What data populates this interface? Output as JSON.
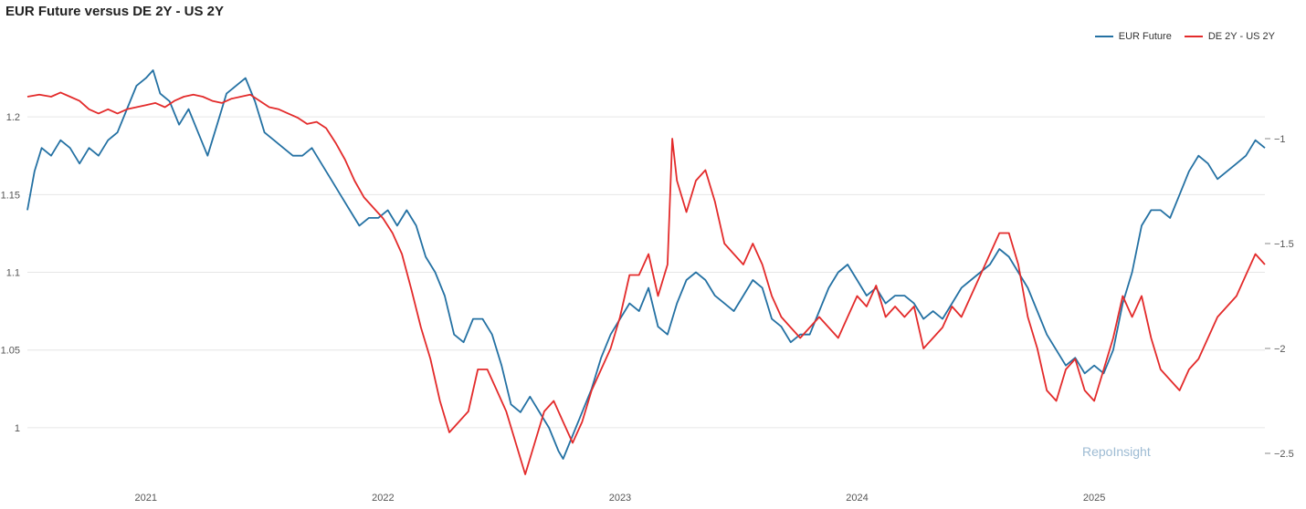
{
  "title": "EUR Future versus DE 2Y - US 2Y",
  "watermark": "RepoInsight",
  "colors": {
    "eur": "#2471a3",
    "spread": "#e32b2b",
    "grid": "#e6e6e6"
  },
  "chart_data": {
    "type": "line",
    "x_ticks": [
      "2021",
      "2022",
      "2023",
      "2024",
      "2025"
    ],
    "y_left_ticks": [
      "1",
      "1.05",
      "1.1",
      "1.15",
      "1.2"
    ],
    "y_right_ticks": [
      "−2.5",
      "−2",
      "−1.5",
      "−1"
    ],
    "y_left_range": [
      0.97,
      1.24
    ],
    "y_right_range": [
      -2.6,
      -0.6
    ],
    "x_range": [
      2020.5,
      2025.72
    ],
    "grid": "horizontal",
    "legend": "top-right",
    "series": [
      {
        "name": "EUR Future",
        "axis": "left",
        "color": "#2471a3",
        "points": [
          [
            2020.5,
            1.14
          ],
          [
            2020.53,
            1.165
          ],
          [
            2020.56,
            1.18
          ],
          [
            2020.6,
            1.175
          ],
          [
            2020.64,
            1.185
          ],
          [
            2020.68,
            1.18
          ],
          [
            2020.72,
            1.17
          ],
          [
            2020.76,
            1.18
          ],
          [
            2020.8,
            1.175
          ],
          [
            2020.84,
            1.185
          ],
          [
            2020.88,
            1.19
          ],
          [
            2020.92,
            1.205
          ],
          [
            2020.96,
            1.22
          ],
          [
            2021.0,
            1.225
          ],
          [
            2021.03,
            1.23
          ],
          [
            2021.06,
            1.215
          ],
          [
            2021.1,
            1.21
          ],
          [
            2021.14,
            1.195
          ],
          [
            2021.18,
            1.205
          ],
          [
            2021.22,
            1.19
          ],
          [
            2021.26,
            1.175
          ],
          [
            2021.3,
            1.195
          ],
          [
            2021.34,
            1.215
          ],
          [
            2021.38,
            1.22
          ],
          [
            2021.42,
            1.225
          ],
          [
            2021.46,
            1.21
          ],
          [
            2021.5,
            1.19
          ],
          [
            2021.54,
            1.185
          ],
          [
            2021.58,
            1.18
          ],
          [
            2021.62,
            1.175
          ],
          [
            2021.66,
            1.175
          ],
          [
            2021.7,
            1.18
          ],
          [
            2021.74,
            1.17
          ],
          [
            2021.78,
            1.16
          ],
          [
            2021.82,
            1.15
          ],
          [
            2021.86,
            1.14
          ],
          [
            2021.9,
            1.13
          ],
          [
            2021.94,
            1.135
          ],
          [
            2021.98,
            1.135
          ],
          [
            2022.02,
            1.14
          ],
          [
            2022.06,
            1.13
          ],
          [
            2022.1,
            1.14
          ],
          [
            2022.14,
            1.13
          ],
          [
            2022.18,
            1.11
          ],
          [
            2022.22,
            1.1
          ],
          [
            2022.26,
            1.085
          ],
          [
            2022.3,
            1.06
          ],
          [
            2022.34,
            1.055
          ],
          [
            2022.38,
            1.07
          ],
          [
            2022.42,
            1.07
          ],
          [
            2022.46,
            1.06
          ],
          [
            2022.5,
            1.04
          ],
          [
            2022.54,
            1.015
          ],
          [
            2022.58,
            1.01
          ],
          [
            2022.62,
            1.02
          ],
          [
            2022.66,
            1.01
          ],
          [
            2022.7,
            1.0
          ],
          [
            2022.74,
            0.985
          ],
          [
            2022.76,
            0.98
          ],
          [
            2022.8,
            0.995
          ],
          [
            2022.84,
            1.01
          ],
          [
            2022.88,
            1.025
          ],
          [
            2022.92,
            1.045
          ],
          [
            2022.96,
            1.06
          ],
          [
            2023.0,
            1.07
          ],
          [
            2023.04,
            1.08
          ],
          [
            2023.08,
            1.075
          ],
          [
            2023.12,
            1.09
          ],
          [
            2023.16,
            1.065
          ],
          [
            2023.2,
            1.06
          ],
          [
            2023.24,
            1.08
          ],
          [
            2023.28,
            1.095
          ],
          [
            2023.32,
            1.1
          ],
          [
            2023.36,
            1.095
          ],
          [
            2023.4,
            1.085
          ],
          [
            2023.44,
            1.08
          ],
          [
            2023.48,
            1.075
          ],
          [
            2023.52,
            1.085
          ],
          [
            2023.56,
            1.095
          ],
          [
            2023.6,
            1.09
          ],
          [
            2023.64,
            1.07
          ],
          [
            2023.68,
            1.065
          ],
          [
            2023.72,
            1.055
          ],
          [
            2023.76,
            1.06
          ],
          [
            2023.8,
            1.06
          ],
          [
            2023.84,
            1.075
          ],
          [
            2023.88,
            1.09
          ],
          [
            2023.92,
            1.1
          ],
          [
            2023.96,
            1.105
          ],
          [
            2024.0,
            1.095
          ],
          [
            2024.04,
            1.085
          ],
          [
            2024.08,
            1.09
          ],
          [
            2024.12,
            1.08
          ],
          [
            2024.16,
            1.085
          ],
          [
            2024.2,
            1.085
          ],
          [
            2024.24,
            1.08
          ],
          [
            2024.28,
            1.07
          ],
          [
            2024.32,
            1.075
          ],
          [
            2024.36,
            1.07
          ],
          [
            2024.4,
            1.08
          ],
          [
            2024.44,
            1.09
          ],
          [
            2024.48,
            1.095
          ],
          [
            2024.52,
            1.1
          ],
          [
            2024.56,
            1.105
          ],
          [
            2024.6,
            1.115
          ],
          [
            2024.64,
            1.11
          ],
          [
            2024.68,
            1.1
          ],
          [
            2024.72,
            1.09
          ],
          [
            2024.76,
            1.075
          ],
          [
            2024.8,
            1.06
          ],
          [
            2024.84,
            1.05
          ],
          [
            2024.88,
            1.04
          ],
          [
            2024.92,
            1.045
          ],
          [
            2024.96,
            1.035
          ],
          [
            2025.0,
            1.04
          ],
          [
            2025.04,
            1.035
          ],
          [
            2025.08,
            1.05
          ],
          [
            2025.12,
            1.08
          ],
          [
            2025.16,
            1.1
          ],
          [
            2025.2,
            1.13
          ],
          [
            2025.24,
            1.14
          ],
          [
            2025.28,
            1.14
          ],
          [
            2025.32,
            1.135
          ],
          [
            2025.36,
            1.15
          ],
          [
            2025.4,
            1.165
          ],
          [
            2025.44,
            1.175
          ],
          [
            2025.48,
            1.17
          ],
          [
            2025.52,
            1.16
          ],
          [
            2025.56,
            1.165
          ],
          [
            2025.6,
            1.17
          ],
          [
            2025.64,
            1.175
          ],
          [
            2025.68,
            1.185
          ],
          [
            2025.72,
            1.18
          ]
        ]
      },
      {
        "name": "DE 2Y - US 2Y",
        "axis": "right",
        "color": "#e32b2b",
        "points": [
          [
            2020.5,
            -0.8
          ],
          [
            2020.55,
            -0.79
          ],
          [
            2020.6,
            -0.8
          ],
          [
            2020.64,
            -0.78
          ],
          [
            2020.68,
            -0.8
          ],
          [
            2020.72,
            -0.82
          ],
          [
            2020.76,
            -0.86
          ],
          [
            2020.8,
            -0.88
          ],
          [
            2020.84,
            -0.86
          ],
          [
            2020.88,
            -0.88
          ],
          [
            2020.92,
            -0.86
          ],
          [
            2020.96,
            -0.85
          ],
          [
            2021.0,
            -0.84
          ],
          [
            2021.04,
            -0.83
          ],
          [
            2021.08,
            -0.85
          ],
          [
            2021.12,
            -0.82
          ],
          [
            2021.16,
            -0.8
          ],
          [
            2021.2,
            -0.79
          ],
          [
            2021.24,
            -0.8
          ],
          [
            2021.28,
            -0.82
          ],
          [
            2021.32,
            -0.83
          ],
          [
            2021.36,
            -0.81
          ],
          [
            2021.4,
            -0.8
          ],
          [
            2021.44,
            -0.79
          ],
          [
            2021.48,
            -0.82
          ],
          [
            2021.52,
            -0.85
          ],
          [
            2021.56,
            -0.86
          ],
          [
            2021.6,
            -0.88
          ],
          [
            2021.64,
            -0.9
          ],
          [
            2021.68,
            -0.93
          ],
          [
            2021.72,
            -0.92
          ],
          [
            2021.76,
            -0.95
          ],
          [
            2021.8,
            -1.02
          ],
          [
            2021.84,
            -1.1
          ],
          [
            2021.88,
            -1.2
          ],
          [
            2021.92,
            -1.28
          ],
          [
            2021.96,
            -1.33
          ],
          [
            2022.0,
            -1.38
          ],
          [
            2022.04,
            -1.45
          ],
          [
            2022.08,
            -1.55
          ],
          [
            2022.12,
            -1.72
          ],
          [
            2022.16,
            -1.9
          ],
          [
            2022.2,
            -2.05
          ],
          [
            2022.24,
            -2.25
          ],
          [
            2022.28,
            -2.4
          ],
          [
            2022.32,
            -2.35
          ],
          [
            2022.36,
            -2.3
          ],
          [
            2022.4,
            -2.1
          ],
          [
            2022.44,
            -2.1
          ],
          [
            2022.48,
            -2.2
          ],
          [
            2022.52,
            -2.3
          ],
          [
            2022.56,
            -2.45
          ],
          [
            2022.6,
            -2.6
          ],
          [
            2022.64,
            -2.45
          ],
          [
            2022.68,
            -2.3
          ],
          [
            2022.72,
            -2.25
          ],
          [
            2022.76,
            -2.35
          ],
          [
            2022.8,
            -2.45
          ],
          [
            2022.84,
            -2.35
          ],
          [
            2022.88,
            -2.2
          ],
          [
            2022.92,
            -2.1
          ],
          [
            2022.96,
            -2.0
          ],
          [
            2023.0,
            -1.85
          ],
          [
            2023.04,
            -1.65
          ],
          [
            2023.08,
            -1.65
          ],
          [
            2023.12,
            -1.55
          ],
          [
            2023.16,
            -1.75
          ],
          [
            2023.2,
            -1.6
          ],
          [
            2023.22,
            -1.0
          ],
          [
            2023.24,
            -1.2
          ],
          [
            2023.28,
            -1.35
          ],
          [
            2023.32,
            -1.2
          ],
          [
            2023.36,
            -1.15
          ],
          [
            2023.4,
            -1.3
          ],
          [
            2023.44,
            -1.5
          ],
          [
            2023.48,
            -1.55
          ],
          [
            2023.52,
            -1.6
          ],
          [
            2023.56,
            -1.5
          ],
          [
            2023.6,
            -1.6
          ],
          [
            2023.64,
            -1.75
          ],
          [
            2023.68,
            -1.85
          ],
          [
            2023.72,
            -1.9
          ],
          [
            2023.76,
            -1.95
          ],
          [
            2023.8,
            -1.9
          ],
          [
            2023.84,
            -1.85
          ],
          [
            2023.88,
            -1.9
          ],
          [
            2023.92,
            -1.95
          ],
          [
            2023.96,
            -1.85
          ],
          [
            2024.0,
            -1.75
          ],
          [
            2024.04,
            -1.8
          ],
          [
            2024.08,
            -1.7
          ],
          [
            2024.12,
            -1.85
          ],
          [
            2024.16,
            -1.8
          ],
          [
            2024.2,
            -1.85
          ],
          [
            2024.24,
            -1.8
          ],
          [
            2024.28,
            -2.0
          ],
          [
            2024.32,
            -1.95
          ],
          [
            2024.36,
            -1.9
          ],
          [
            2024.4,
            -1.8
          ],
          [
            2024.44,
            -1.85
          ],
          [
            2024.48,
            -1.75
          ],
          [
            2024.52,
            -1.65
          ],
          [
            2024.56,
            -1.55
          ],
          [
            2024.6,
            -1.45
          ],
          [
            2024.64,
            -1.45
          ],
          [
            2024.68,
            -1.6
          ],
          [
            2024.72,
            -1.85
          ],
          [
            2024.76,
            -2.0
          ],
          [
            2024.8,
            -2.2
          ],
          [
            2024.84,
            -2.25
          ],
          [
            2024.88,
            -2.1
          ],
          [
            2024.92,
            -2.05
          ],
          [
            2024.96,
            -2.2
          ],
          [
            2025.0,
            -2.25
          ],
          [
            2025.04,
            -2.1
          ],
          [
            2025.08,
            -1.95
          ],
          [
            2025.12,
            -1.75
          ],
          [
            2025.16,
            -1.85
          ],
          [
            2025.2,
            -1.75
          ],
          [
            2025.24,
            -1.95
          ],
          [
            2025.28,
            -2.1
          ],
          [
            2025.32,
            -2.15
          ],
          [
            2025.36,
            -2.2
          ],
          [
            2025.4,
            -2.1
          ],
          [
            2025.44,
            -2.05
          ],
          [
            2025.48,
            -1.95
          ],
          [
            2025.52,
            -1.85
          ],
          [
            2025.56,
            -1.8
          ],
          [
            2025.6,
            -1.75
          ],
          [
            2025.64,
            -1.65
          ],
          [
            2025.68,
            -1.55
          ],
          [
            2025.72,
            -1.6
          ]
        ]
      }
    ]
  }
}
